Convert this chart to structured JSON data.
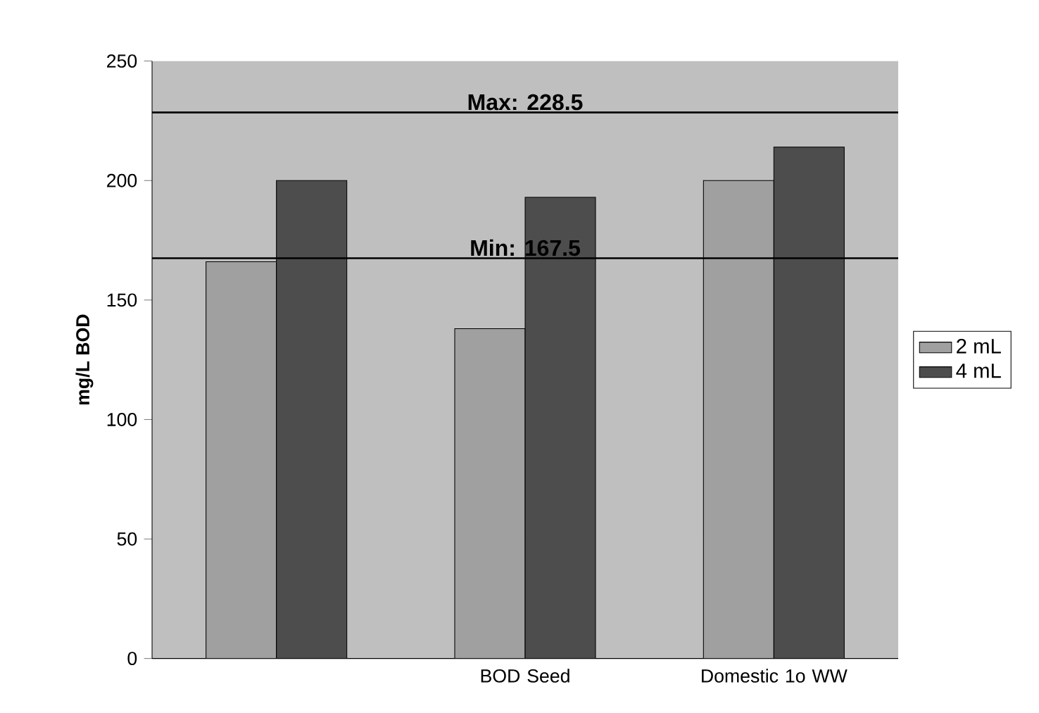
{
  "chart_data": {
    "type": "bar",
    "categories": [
      null,
      "BOD Seed",
      "Domestic 1o WW"
    ],
    "series": [
      {
        "name": "2 mL",
        "color": "#a0a0a0",
        "values": [
          166,
          138,
          200
        ]
      },
      {
        "name": "4 mL",
        "color": "#4d4d4d",
        "values": [
          200,
          193,
          214
        ]
      }
    ],
    "ylabel": "mg/L BOD",
    "ylim": [
      0,
      250
    ],
    "yticks": [
      0,
      50,
      100,
      150,
      200,
      250
    ],
    "ref_lines": [
      {
        "axis": "y",
        "value": 228.5,
        "label": "Max:      228.5",
        "color": "#000000"
      },
      {
        "axis": "y",
        "value": 167.5,
        "label": "Min:        167.5",
        "color": "#000000"
      }
    ],
    "legend": "right"
  }
}
